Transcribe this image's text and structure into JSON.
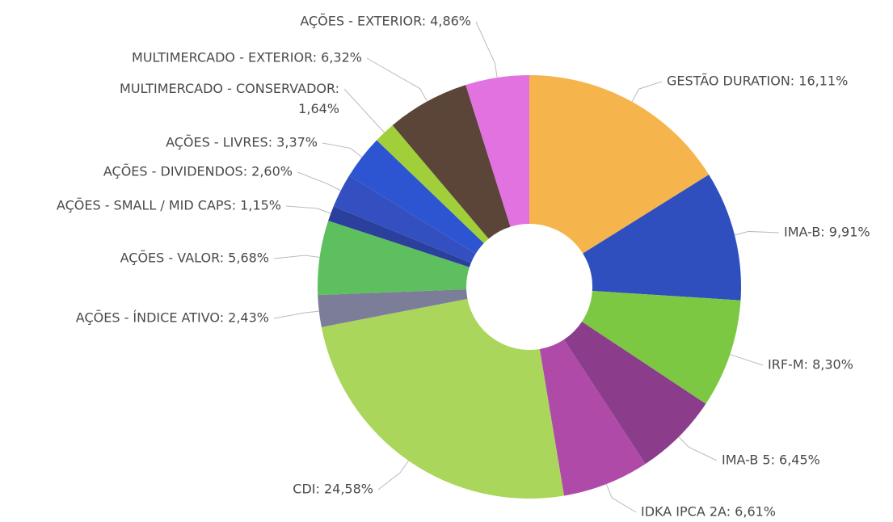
{
  "chart_data": {
    "type": "donut",
    "values": [
      16.11,
      9.91,
      8.3,
      6.45,
      6.61,
      24.58,
      2.43,
      5.68,
      1.15,
      2.6,
      3.37,
      1.64,
      6.32,
      4.86
    ],
    "value_labels": [
      "GESTÃO DURATION: 16,11%",
      "IMA-B: 9,91%",
      "IRF-M: 8,30%",
      "IMA-B 5: 6,45%",
      "IDKA IPCA 2A: 6,61%",
      "CDI: 24,58%",
      "AÇÕES - ÍNDICE ATIVO: 2,43%",
      "AÇÕES - VALOR: 5,68%",
      "AÇÕES - SMALL / MID CAPS: 1,15%",
      "AÇÕES - DIVIDENDOS: 2,60%",
      "AÇÕES - LIVRES: 3,37%",
      "MULTIMERCADO - CONSERVADOR: 1,64%",
      "MULTIMERCADO - EXTERIOR: 6,32%",
      "AÇÕES - EXTERIOR: 4,86%"
    ],
    "colors": [
      "#f6b54c",
      "#2f4fbf",
      "#7cc843",
      "#8b3d8c",
      "#b04aa8",
      "#a9d65b",
      "#7c7e99",
      "#5dbf5d",
      "#2b3f9c",
      "#3450c0",
      "#2d55d2",
      "#a0cf3a",
      "#5b4539",
      "#e272e0"
    ]
  }
}
